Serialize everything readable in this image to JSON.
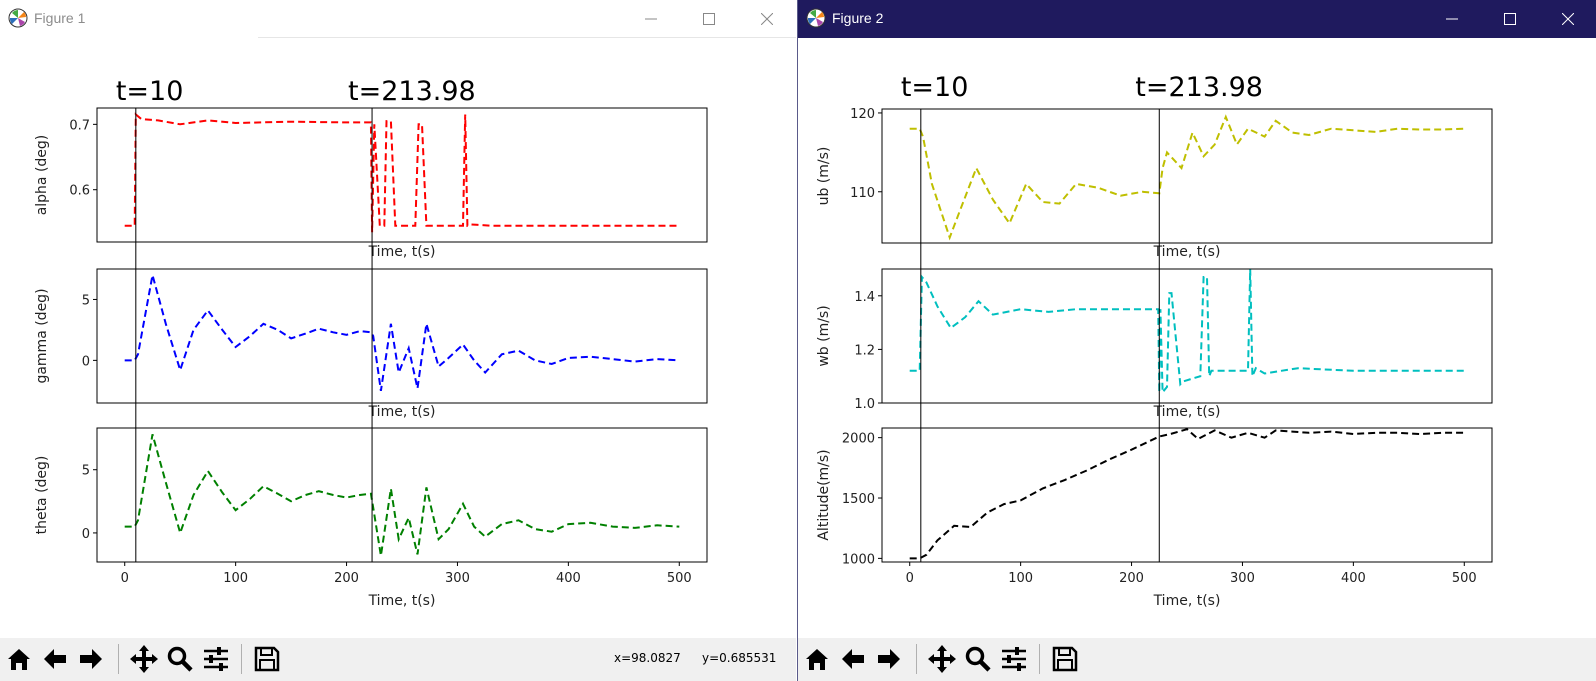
{
  "windows": [
    {
      "title": "Figure 1",
      "x_label": "Time, t(s)",
      "x_ticks": [
        0,
        100,
        200,
        300,
        400,
        500
      ],
      "x_range": [
        -25,
        525
      ],
      "markers": [
        {
          "t": 10,
          "label": "t=10"
        },
        {
          "t": 223,
          "label": "t=213.98"
        }
      ],
      "coords": {
        "x": "x=98.0827",
        "y": "y=0.685531"
      },
      "panels": [
        {
          "ylabel": "alpha (deg)",
          "color": "#ff0000",
          "ylim": [
            0.52,
            0.725
          ],
          "yticks": [
            0.6,
            0.7
          ],
          "ytick_labels": [
            "0.6",
            "0.7"
          ]
        },
        {
          "ylabel": "gamma (deg)",
          "color": "#0000ff",
          "ylim": [
            -3.5,
            7.5
          ],
          "yticks": [
            0,
            5
          ],
          "ytick_labels": [
            "0",
            "5"
          ]
        },
        {
          "ylabel": "theta (deg)",
          "color": "#008000",
          "ylim": [
            -2.3,
            8.3
          ],
          "yticks": [
            0,
            5
          ],
          "ytick_labels": [
            "0",
            "5"
          ]
        }
      ]
    },
    {
      "title": "Figure 2",
      "x_label": "Time, t(s)",
      "x_ticks": [
        0,
        100,
        200,
        300,
        400,
        500
      ],
      "x_range": [
        -25,
        525
      ],
      "markers": [
        {
          "t": 10,
          "label": "t=10"
        },
        {
          "t": 225,
          "label": "t=213.98"
        }
      ],
      "panels": [
        {
          "ylabel": "ub (m/s)",
          "color": "#bfbf00",
          "ylim": [
            103.5,
            120.5
          ],
          "yticks": [
            110,
            120
          ],
          "ytick_labels": [
            "110",
            "120"
          ]
        },
        {
          "ylabel": "wb (m/s)",
          "color": "#00bfbf",
          "ylim": [
            1.0,
            1.5
          ],
          "yticks": [
            1.0,
            1.2,
            1.4
          ],
          "ytick_labels": [
            "1.0",
            "1.2",
            "1.4"
          ]
        },
        {
          "ylabel": "Altitude(m/s)",
          "color": "#000000",
          "ylim": [
            970,
            2080
          ],
          "yticks": [
            1000,
            1500,
            2000
          ],
          "ytick_labels": [
            "1000",
            "1500",
            "2000"
          ]
        }
      ]
    }
  ],
  "chart_data": [
    {
      "type": "line",
      "figure": "Figure 1",
      "xlabel": "Time, t(s)",
      "series": [
        {
          "ylabel": "alpha (deg)",
          "x": [
            0,
            9,
            10,
            15,
            30,
            50,
            75,
            100,
            150,
            200,
            222,
            223,
            225,
            230,
            234,
            236,
            240,
            244,
            246,
            262,
            265,
            268,
            272,
            275,
            305,
            307,
            309,
            312,
            330,
            500
          ],
          "y": [
            0.545,
            0.545,
            0.715,
            0.708,
            0.706,
            0.7,
            0.706,
            0.702,
            0.704,
            0.703,
            0.703,
            0.535,
            0.7,
            0.545,
            0.545,
            0.705,
            0.705,
            0.545,
            0.545,
            0.545,
            0.7,
            0.7,
            0.545,
            0.545,
            0.545,
            0.715,
            0.545,
            0.547,
            0.545,
            0.545
          ]
        },
        {
          "ylabel": "gamma (deg)",
          "x": [
            0,
            9,
            12,
            25,
            37,
            50,
            62,
            75,
            88,
            100,
            113,
            125,
            138,
            150,
            163,
            175,
            188,
            200,
            212,
            222,
            224,
            231,
            240,
            247,
            256,
            264,
            272,
            283,
            292,
            305,
            315,
            325,
            340,
            355,
            370,
            385,
            400,
            420,
            440,
            460,
            480,
            500
          ],
          "y": [
            0,
            0,
            0.5,
            7,
            3,
            -0.8,
            2.5,
            4.1,
            2.5,
            1.1,
            2,
            3,
            2.5,
            1.8,
            2.2,
            2.6,
            2.3,
            2.1,
            2.4,
            2.3,
            2,
            -2.5,
            3,
            -1,
            1,
            -2.3,
            3,
            -0.5,
            0.2,
            1.3,
            0,
            -1,
            0.5,
            0.8,
            0,
            -0.3,
            0.2,
            0.3,
            0.1,
            -0.1,
            0.1,
            0
          ]
        },
        {
          "ylabel": "theta (deg)",
          "x": [
            0,
            9,
            12,
            25,
            37,
            50,
            62,
            75,
            88,
            100,
            113,
            125,
            138,
            150,
            163,
            175,
            188,
            200,
            212,
            222,
            224,
            231,
            240,
            247,
            256,
            264,
            272,
            283,
            292,
            305,
            315,
            325,
            340,
            355,
            370,
            385,
            400,
            420,
            440,
            460,
            480,
            500
          ],
          "y": [
            0.5,
            0.5,
            1,
            7.8,
            4,
            0,
            3,
            4.9,
            3.2,
            1.8,
            2.7,
            3.7,
            3.1,
            2.5,
            3,
            3.3,
            3,
            2.8,
            3,
            3.1,
            2,
            -1.8,
            3.5,
            -0.5,
            1.2,
            -1.7,
            3.6,
            -0.5,
            0.3,
            2.3,
            0.5,
            -0.3,
            0.7,
            1,
            0.3,
            0.1,
            0.7,
            0.8,
            0.5,
            0.4,
            0.6,
            0.5
          ]
        }
      ]
    },
    {
      "type": "line",
      "figure": "Figure 2",
      "xlabel": "Time, t(s)",
      "series": [
        {
          "ylabel": "ub (m/s)",
          "x": [
            0,
            9,
            12,
            20,
            36,
            45,
            60,
            75,
            90,
            105,
            120,
            135,
            150,
            170,
            190,
            210,
            225,
            228,
            232,
            245,
            255,
            265,
            275,
            285,
            295,
            305,
            320,
            330,
            345,
            360,
            380,
            400,
            420,
            440,
            460,
            480,
            500
          ],
          "y": [
            118,
            118,
            117,
            111,
            104.2,
            107.5,
            113,
            109,
            106,
            111,
            108.7,
            108.5,
            111,
            110.5,
            109.5,
            110,
            109.8,
            113,
            115,
            113,
            117.5,
            114.5,
            116,
            119.5,
            116,
            118,
            117,
            119,
            117.5,
            117.2,
            118,
            117.8,
            117.6,
            118,
            117.9,
            117.9,
            118
          ]
        },
        {
          "ylabel": "wb (m/s)",
          "x": [
            0,
            9,
            11,
            15,
            25,
            37,
            50,
            62,
            75,
            100,
            125,
            150,
            200,
            222,
            224,
            225,
            226,
            228,
            232,
            234,
            236,
            244,
            246,
            262,
            265,
            268,
            270,
            272,
            305,
            307,
            309,
            312,
            320,
            335,
            350,
            400,
            500
          ],
          "y": [
            1.12,
            1.12,
            1.47,
            1.45,
            1.36,
            1.28,
            1.32,
            1.38,
            1.33,
            1.35,
            1.34,
            1.35,
            1.35,
            1.35,
            1.35,
            1.04,
            1.35,
            1.04,
            1.06,
            1.41,
            1.41,
            1.07,
            1.08,
            1.1,
            1.47,
            1.47,
            1.1,
            1.12,
            1.12,
            1.5,
            1.1,
            1.13,
            1.11,
            1.12,
            1.13,
            1.12,
            1.12
          ]
        },
        {
          "ylabel": "Altitude(m/s)",
          "x": [
            0,
            9,
            15,
            25,
            40,
            55,
            70,
            85,
            100,
            120,
            140,
            160,
            180,
            200,
            225,
            235,
            250,
            260,
            275,
            290,
            305,
            320,
            330,
            345,
            360,
            380,
            400,
            420,
            440,
            460,
            480,
            500
          ],
          "y": [
            1000,
            1000,
            1030,
            1150,
            1270,
            1260,
            1380,
            1450,
            1480,
            1580,
            1650,
            1730,
            1820,
            1900,
            2010,
            2030,
            2070,
            1990,
            2060,
            2000,
            2040,
            2000,
            2060,
            2050,
            2040,
            2050,
            2030,
            2040,
            2040,
            2030,
            2040,
            2040
          ]
        }
      ]
    }
  ]
}
